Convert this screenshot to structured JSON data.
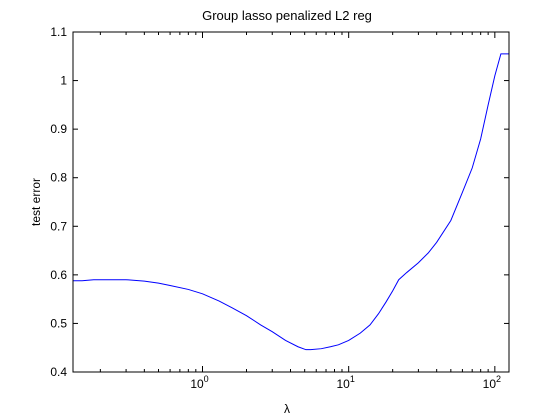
{
  "chart_data": {
    "type": "line",
    "title": "Group lasso penalized L2 reg",
    "xlabel": "λ",
    "ylabel": "test error",
    "xscale": "log",
    "xlim": [
      0.13,
      125
    ],
    "ylim": [
      0.4,
      1.1
    ],
    "grid": false,
    "y_ticks": [
      {
        "value": 0.4,
        "label": "0.4"
      },
      {
        "value": 0.5,
        "label": "0.5"
      },
      {
        "value": 0.6,
        "label": "0.6"
      },
      {
        "value": 0.7,
        "label": "0.7"
      },
      {
        "value": 0.8,
        "label": "0.8"
      },
      {
        "value": 0.9,
        "label": "0.9"
      },
      {
        "value": 1.0,
        "label": "1"
      },
      {
        "value": 1.1,
        "label": "1.1"
      }
    ],
    "x_major_ticks": [
      {
        "value": 1,
        "base": "10",
        "exp": "0"
      },
      {
        "value": 10,
        "base": "10",
        "exp": "1"
      },
      {
        "value": 100,
        "base": "10",
        "exp": "2"
      }
    ],
    "series": [
      {
        "color": "#0000ff",
        "x": [
          0.13,
          0.15,
          0.18,
          0.22,
          0.3,
          0.4,
          0.5,
          0.6,
          0.8,
          1.0,
          1.3,
          1.6,
          2.0,
          2.5,
          3.0,
          3.7,
          4.5,
          5.1,
          5.5,
          6.5,
          7.5,
          8.5,
          10,
          12,
          14,
          16,
          18,
          20,
          22,
          25,
          30,
          35,
          40,
          50,
          60,
          70,
          80,
          90,
          100,
          110,
          125
        ],
        "y": [
          0.588,
          0.588,
          0.59,
          0.59,
          0.59,
          0.587,
          0.583,
          0.578,
          0.57,
          0.561,
          0.546,
          0.532,
          0.516,
          0.497,
          0.483,
          0.465,
          0.452,
          0.446,
          0.446,
          0.448,
          0.452,
          0.456,
          0.465,
          0.48,
          0.497,
          0.52,
          0.544,
          0.567,
          0.59,
          0.605,
          0.625,
          0.645,
          0.667,
          0.712,
          0.77,
          0.82,
          0.88,
          0.95,
          1.01,
          1.055,
          1.055
        ]
      }
    ]
  }
}
